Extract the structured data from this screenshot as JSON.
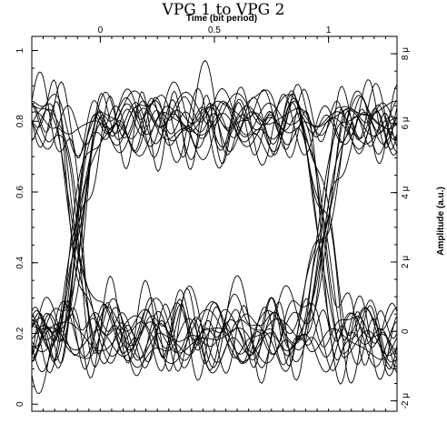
{
  "chart_data": {
    "type": "line",
    "title": "VPG 1 to VPG 2",
    "xlabel": "Time (bit period)",
    "ylabel": "Amplitude (a.u.)",
    "x_range": [
      -0.3,
      1.3
    ],
    "x_ticks": [
      "0",
      "0.5",
      "1"
    ],
    "x_tick_values": [
      0,
      0.5,
      1
    ],
    "left_y_range": [
      -0.02,
      1.04
    ],
    "left_y_ticks": [
      "0",
      "0.2",
      "0.4",
      "0.6",
      "0.8",
      "1"
    ],
    "left_y_tick_values": [
      0,
      0.2,
      0.4,
      0.6,
      0.8,
      1
    ],
    "right_y_range": [
      -2.3,
      8.5
    ],
    "right_y_ticks": [
      "-2 μ",
      "0",
      "2 μ",
      "4 μ",
      "6 μ",
      "8 μ"
    ],
    "right_y_tick_values": [
      -2,
      0,
      2,
      4,
      6,
      8
    ],
    "eye": {
      "unit_interval": [
        0,
        1
      ],
      "high_level": 0.8,
      "low_level": 0.2,
      "crossing_points": [
        -0.1,
        0.98
      ],
      "trace_count": 30
    },
    "grid": false,
    "legend": "none"
  }
}
